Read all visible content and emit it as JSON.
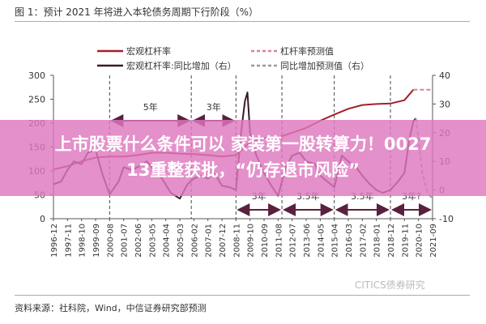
{
  "chart_data": {
    "type": "line",
    "title": "图 1：预计 2021 年将进入本轮债务周期下行阶段（%）",
    "source": "资料来源：社科院，Wind，中信证券研究部预测",
    "watermark": "CITICS债券研究",
    "x_tick_labels": [
      "1996-12",
      "1997-11",
      "1998-10",
      "1999-09",
      "2000-08",
      "2001-07",
      "2002-06",
      "2003-05",
      "2004-04",
      "2005-03",
      "2006-02",
      "2007-01",
      "2007-12",
      "2008-11",
      "2009-10",
      "2010-09",
      "2011-08",
      "2012-07",
      "2013-06",
      "2014-05",
      "2015-04",
      "2016-03",
      "2017-02",
      "2018-01",
      "2018-12",
      "2019-11",
      "2020-10",
      "2021-09"
    ],
    "y_left": {
      "ticks": [
        0,
        50,
        100,
        150,
        200,
        250,
        300
      ],
      "range": [
        0,
        300
      ]
    },
    "y_right": {
      "ticks": [
        -10,
        0,
        10,
        20,
        30,
        40
      ],
      "range": [
        -10,
        40
      ]
    },
    "grid": false,
    "legend_position": "top",
    "series": [
      {
        "name": "宏观杠杆率",
        "axis": "left",
        "color": "#a3202a",
        "style": "solid",
        "points": [
          [
            "1996-12",
            103
          ],
          [
            "1997-11",
            110
          ],
          [
            "1998-10",
            120
          ],
          [
            "1999-09",
            128
          ],
          [
            "2000-08",
            130
          ],
          [
            "2001-07",
            130
          ],
          [
            "2002-06",
            133
          ],
          [
            "2003-05",
            138
          ],
          [
            "2004-04",
            138
          ],
          [
            "2005-03",
            136
          ],
          [
            "2006-02",
            135
          ],
          [
            "2007-01",
            133
          ],
          [
            "2007-12",
            130
          ],
          [
            "2008-11",
            133
          ],
          [
            "2009-10",
            160
          ],
          [
            "2010-09",
            168
          ],
          [
            "2011-08",
            170
          ],
          [
            "2012-07",
            180
          ],
          [
            "2013-06",
            190
          ],
          [
            "2014-05",
            205
          ],
          [
            "2015-04",
            218
          ],
          [
            "2016-03",
            230
          ],
          [
            "2017-02",
            238
          ],
          [
            "2018-01",
            240
          ],
          [
            "2018-12",
            241
          ],
          [
            "2019-11",
            248
          ],
          [
            "2020-06",
            270
          ]
        ]
      },
      {
        "name": "杠杆率预测值",
        "axis": "left",
        "color": "#d9839a",
        "style": "dashed",
        "points": [
          [
            "2020-06",
            270
          ],
          [
            "2021-09",
            270
          ]
        ]
      },
      {
        "name": "宏观杠杆率:同比增加（右）",
        "axis": "right",
        "color": "#3a1a2a",
        "style": "solid",
        "points": [
          [
            "1996-12",
            2
          ],
          [
            "1997-06",
            3
          ],
          [
            "1997-11",
            7
          ],
          [
            "1998-04",
            10
          ],
          [
            "1998-10",
            9
          ],
          [
            "1999-03",
            13
          ],
          [
            "1999-09",
            14
          ],
          [
            "2000-02",
            6
          ],
          [
            "2000-08",
            -1.5
          ],
          [
            "2001-03",
            3
          ],
          [
            "2001-07",
            8
          ],
          [
            "2002-01",
            7
          ],
          [
            "2002-06",
            8
          ],
          [
            "2003-01",
            10
          ],
          [
            "2003-05",
            8
          ],
          [
            "2004-01",
            4
          ],
          [
            "2004-08",
            -1
          ],
          [
            "2005-03",
            -3
          ],
          [
            "2005-09",
            2
          ],
          [
            "2006-02",
            4
          ],
          [
            "2006-08",
            5
          ],
          [
            "2007-01",
            4
          ],
          [
            "2007-06",
            6
          ],
          [
            "2007-12",
            1.5
          ],
          [
            "2008-06",
            1
          ],
          [
            "2008-11",
            0
          ],
          [
            "2009-03",
            20
          ],
          [
            "2009-06",
            31
          ],
          [
            "2009-08",
            34
          ],
          [
            "2009-10",
            20
          ],
          [
            "2010-03",
            12
          ],
          [
            "2010-09",
            6
          ],
          [
            "2011-02",
            2
          ],
          [
            "2011-08",
            -2
          ],
          [
            "2012-02",
            8
          ],
          [
            "2012-07",
            12
          ],
          [
            "2013-01",
            13
          ],
          [
            "2013-06",
            10
          ],
          [
            "2014-01",
            9
          ],
          [
            "2014-05",
            5
          ],
          [
            "2015-04",
            1
          ],
          [
            "2015-10",
            12
          ],
          [
            "2016-03",
            10
          ],
          [
            "2016-09",
            8
          ],
          [
            "2017-02",
            5
          ],
          [
            "2017-08",
            2
          ],
          [
            "2018-01",
            0
          ],
          [
            "2018-06",
            -1
          ],
          [
            "2018-12",
            0
          ],
          [
            "2019-06",
            3
          ],
          [
            "2019-11",
            6
          ],
          [
            "2020-03",
            18
          ],
          [
            "2020-06",
            24
          ],
          [
            "2020-08",
            25
          ]
        ]
      },
      {
        "name": "同比增加预测值（右）",
        "axis": "right",
        "color": "#999999",
        "style": "dashed",
        "points": [
          [
            "2020-08",
            25
          ],
          [
            "2021-01",
            6
          ],
          [
            "2021-05",
            -1
          ],
          [
            "2021-09",
            -3
          ]
        ]
      }
    ],
    "annotations": [
      {
        "label": "5年",
        "from": "2000-08",
        "to": "2005-12",
        "level": "upper"
      },
      {
        "label": "3年",
        "from": "2005-12",
        "to": "2008-11",
        "level": "upper"
      },
      {
        "label": "3年",
        "from": "2008-11",
        "to": "2011-11",
        "level": "lower"
      },
      {
        "label": "3.5年",
        "from": "2011-11",
        "to": "2015-04",
        "level": "lower"
      },
      {
        "label": "3.5年",
        "from": "2015-04",
        "to": "2018-12",
        "level": "lower"
      },
      {
        "label": "3年?",
        "from": "2018-12",
        "to": "2021-09",
        "level": "lower"
      }
    ],
    "cycle_lines": [
      "2000-08",
      "2005-12",
      "2008-11",
      "2011-11",
      "2015-04",
      "2018-12"
    ]
  },
  "banner": {
    "line1": "上市股票什么条件可以 家装第一股转算力！0027",
    "line2": "13重整获批，“仍存退市风险”"
  }
}
